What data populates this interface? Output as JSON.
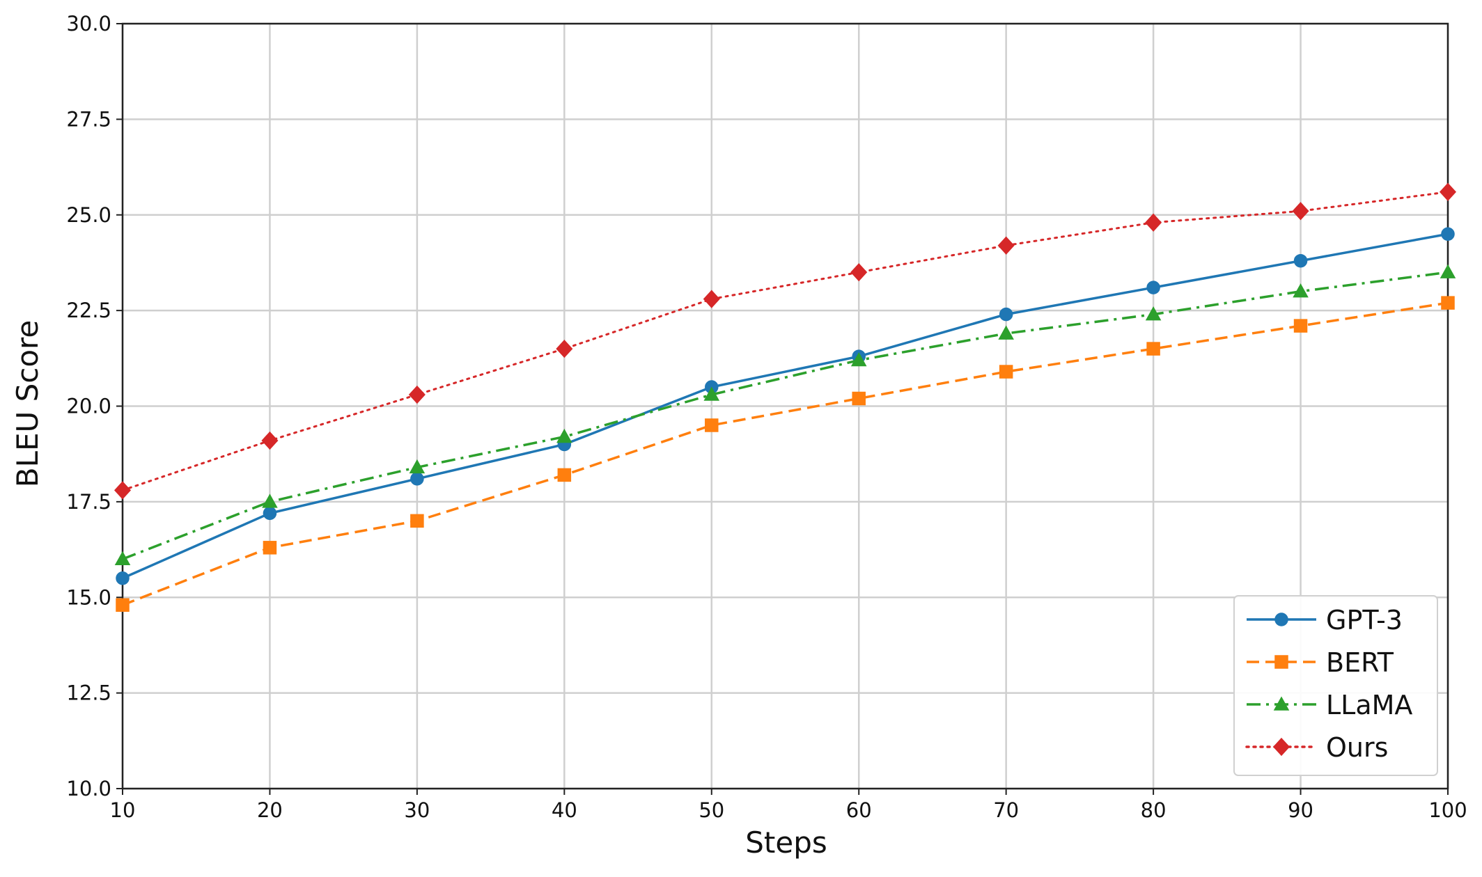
{
  "chart_data": {
    "type": "line",
    "xlabel": "Steps",
    "ylabel": "BLEU Score",
    "xlim": [
      10,
      100
    ],
    "ylim": [
      10.0,
      30.0
    ],
    "x": [
      10,
      20,
      30,
      40,
      50,
      60,
      70,
      80,
      90,
      100
    ],
    "x_ticks": [
      "10",
      "20",
      "30",
      "40",
      "50",
      "60",
      "70",
      "80",
      "90",
      "100"
    ],
    "y_ticks": [
      "10.0",
      "12.5",
      "15.0",
      "17.5",
      "20.0",
      "22.5",
      "25.0",
      "27.5",
      "30.0"
    ],
    "grid": true,
    "legend_position": "bottom-right",
    "series": [
      {
        "name": "GPT-3",
        "color": "#1f77b4",
        "line_style": "solid",
        "marker": "circle",
        "values": [
          15.5,
          17.2,
          18.1,
          19.0,
          20.5,
          21.3,
          22.4,
          23.1,
          23.8,
          24.5
        ]
      },
      {
        "name": "BERT",
        "color": "#ff7f0e",
        "line_style": "dashed",
        "marker": "square",
        "values": [
          14.8,
          16.3,
          17.0,
          18.2,
          19.5,
          20.2,
          20.9,
          21.5,
          22.1,
          22.7
        ]
      },
      {
        "name": "LLaMA",
        "color": "#2ca02c",
        "line_style": "dashdot",
        "marker": "triangle",
        "values": [
          16.0,
          17.5,
          18.4,
          19.2,
          20.3,
          21.2,
          21.9,
          22.4,
          23.0,
          23.5
        ]
      },
      {
        "name": "Ours",
        "color": "#d62728",
        "line_style": "dotted",
        "marker": "diamond",
        "values": [
          17.8,
          19.1,
          20.3,
          21.5,
          22.8,
          23.5,
          24.2,
          24.8,
          25.1,
          25.6
        ]
      }
    ]
  }
}
